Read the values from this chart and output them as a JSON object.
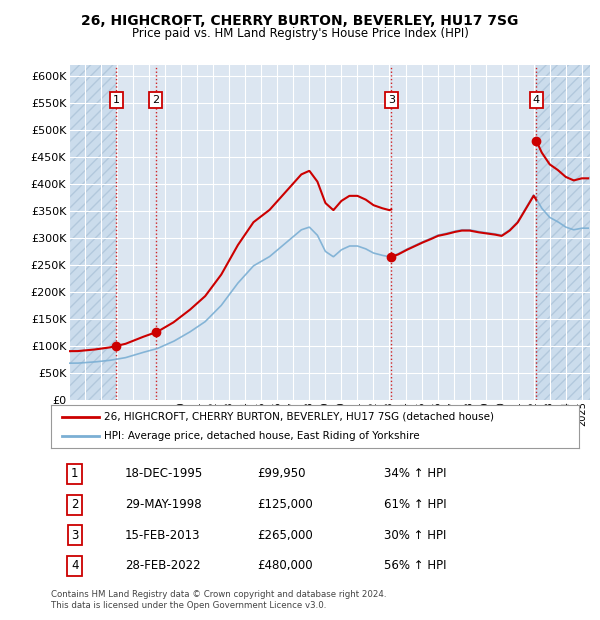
{
  "title": "26, HIGHCROFT, CHERRY BURTON, BEVERLEY, HU17 7SG",
  "subtitle": "Price paid vs. HM Land Registry's House Price Index (HPI)",
  "ylim": [
    0,
    620000
  ],
  "yticks": [
    0,
    50000,
    100000,
    150000,
    200000,
    250000,
    300000,
    350000,
    400000,
    450000,
    500000,
    550000,
    600000
  ],
  "xlim_start": 1993.0,
  "xlim_end": 2025.5,
  "background_color": "#ffffff",
  "plot_bg_color": "#dce6f1",
  "grid_color": "#ffffff",
  "purchases": [
    {
      "date_num": 1995.96,
      "price": 99950,
      "label": "1"
    },
    {
      "date_num": 1998.41,
      "price": 125000,
      "label": "2"
    },
    {
      "date_num": 2013.12,
      "price": 265000,
      "label": "3"
    },
    {
      "date_num": 2022.16,
      "price": 480000,
      "label": "4"
    }
  ],
  "purchase_line_color": "#cc0000",
  "hpi_line_color": "#7BAFD4",
  "legend_entries": [
    "26, HIGHCROFT, CHERRY BURTON, BEVERLEY, HU17 7SG (detached house)",
    "HPI: Average price, detached house, East Riding of Yorkshire"
  ],
  "table_data": [
    [
      "1",
      "18-DEC-1995",
      "£99,950",
      "34% ↑ HPI"
    ],
    [
      "2",
      "29-MAY-1998",
      "£125,000",
      "61% ↑ HPI"
    ],
    [
      "3",
      "15-FEB-2013",
      "£265,000",
      "30% ↑ HPI"
    ],
    [
      "4",
      "28-FEB-2022",
      "£480,000",
      "56% ↑ HPI"
    ]
  ],
  "footer": "Contains HM Land Registry data © Crown copyright and database right 2024.\nThis data is licensed under the Open Government Licence v3.0.",
  "hpi_data": {
    "years": [
      1993.5,
      1994.5,
      1995.5,
      1996.5,
      1997.5,
      1998.5,
      1999.5,
      2000.5,
      2001.5,
      2002.5,
      2003.5,
      2004.5,
      2005.5,
      2006.5,
      2007.5,
      2008.0,
      2008.5,
      2009.0,
      2009.5,
      2010.0,
      2010.5,
      2011.0,
      2011.5,
      2012.0,
      2012.5,
      2013.0,
      2013.5,
      2014.0,
      2014.5,
      2015.0,
      2015.5,
      2016.0,
      2016.5,
      2017.0,
      2017.5,
      2018.0,
      2018.5,
      2019.0,
      2019.5,
      2020.0,
      2020.5,
      2021.0,
      2021.5,
      2022.0,
      2022.5,
      2023.0,
      2023.5,
      2024.0,
      2024.5,
      2025.0
    ],
    "prices": [
      68000,
      70000,
      73000,
      78000,
      87000,
      95000,
      108000,
      125000,
      145000,
      175000,
      215000,
      248000,
      265000,
      290000,
      315000,
      320000,
      305000,
      275000,
      265000,
      278000,
      285000,
      285000,
      280000,
      272000,
      268000,
      265000,
      270000,
      278000,
      285000,
      292000,
      298000,
      305000,
      308000,
      312000,
      315000,
      315000,
      312000,
      310000,
      308000,
      305000,
      315000,
      330000,
      355000,
      380000,
      355000,
      338000,
      330000,
      320000,
      315000,
      318000
    ]
  }
}
